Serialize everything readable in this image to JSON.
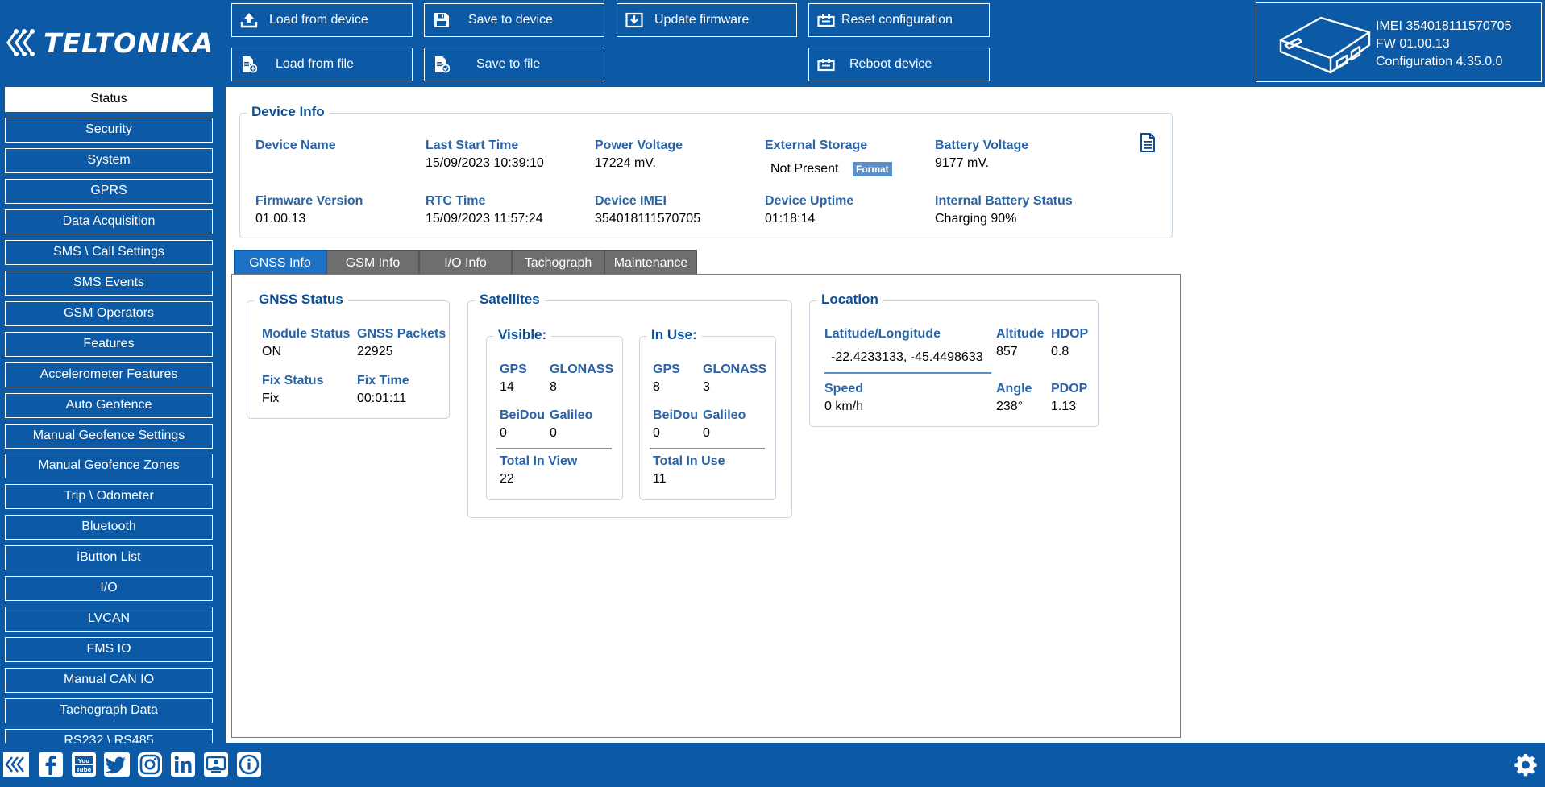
{
  "header": {
    "logo_text": "TELTONIKA",
    "toolbar": {
      "load_from_device": "Load from device",
      "load_from_file": "Load from file",
      "save_to_device": "Save to device",
      "save_to_file": "Save to file",
      "update_firmware": "Update firmware",
      "reset_configuration": "Reset configuration",
      "reboot_device": "Reboot device"
    },
    "device": {
      "imei": "IMEI 354018111570705",
      "fw": "FW 01.00.13",
      "configuration": "Configuration 4.35.0.0"
    }
  },
  "sidebar": {
    "items": [
      "Status",
      "Security",
      "System",
      "GPRS",
      "Data Acquisition",
      "SMS \\ Call Settings",
      "SMS Events",
      "GSM Operators",
      "Features",
      "Accelerometer Features",
      "Auto Geofence",
      "Manual Geofence Settings",
      "Manual Geofence Zones",
      "Trip \\ Odometer",
      "Bluetooth",
      "iButton List",
      "I/O",
      "LVCAN",
      "FMS IO",
      "Manual CAN IO",
      "Tachograph Data",
      "RS232 \\ RS485"
    ],
    "active": "Status"
  },
  "device_info": {
    "title": "Device Info",
    "device_name_label": "Device Name",
    "device_name": "",
    "last_start_time_label": "Last Start Time",
    "last_start_time": "15/09/2023 10:39:10",
    "power_voltage_label": "Power Voltage",
    "power_voltage": "17224 mV.",
    "external_storage_label": "External Storage",
    "external_storage": "Not Present",
    "format_button": "Format",
    "battery_voltage_label": "Battery Voltage",
    "battery_voltage": "9177 mV.",
    "firmware_version_label": "Firmware Version",
    "firmware_version": "01.00.13",
    "rtc_time_label": "RTC Time",
    "rtc_time": "15/09/2023 11:57:24",
    "device_imei_label": "Device IMEI",
    "device_imei": "354018111570705",
    "device_uptime_label": "Device Uptime",
    "device_uptime": "01:18:14",
    "internal_battery_status_label": "Internal Battery Status",
    "internal_battery_status": "Charging 90%"
  },
  "tabs": [
    "GNSS Info",
    "GSM Info",
    "I/O Info",
    "Tachograph",
    "Maintenance"
  ],
  "active_tab": "GNSS Info",
  "gnss_status": {
    "title": "GNSS Status",
    "module_status_label": "Module Status",
    "module_status": "ON",
    "gnss_packets_label": "GNSS Packets",
    "gnss_packets": "22925",
    "fix_status_label": "Fix Status",
    "fix_status": "Fix",
    "fix_time_label": "Fix Time",
    "fix_time": "00:01:11"
  },
  "satellites": {
    "title": "Satellites",
    "visible": {
      "title": "Visible:",
      "gps_label": "GPS",
      "gps": "14",
      "glonass_label": "GLONASS",
      "glonass": "8",
      "beidou_label": "BeiDou",
      "beidou": "0",
      "galileo_label": "Galileo",
      "galileo": "0",
      "total_label": "Total In View",
      "total": "22"
    },
    "in_use": {
      "title": "In Use:",
      "gps_label": "GPS",
      "gps": "8",
      "glonass_label": "GLONASS",
      "glonass": "3",
      "beidou_label": "BeiDou",
      "beidou": "0",
      "galileo_label": "Galileo",
      "galileo": "0",
      "total_label": "Total In Use",
      "total": "11"
    }
  },
  "location": {
    "title": "Location",
    "latlon_label": "Latitude/Longitude",
    "latlon": "-22.4233133, -45.4498633",
    "altitude_label": "Altitude",
    "altitude": "857",
    "hdop_label": "HDOP",
    "hdop": "0.8",
    "speed_label": "Speed",
    "speed": "0 km/h",
    "angle_label": "Angle",
    "angle": "238°",
    "pdop_label": "PDOP",
    "pdop": "1.13"
  },
  "colors": {
    "brand_blue": "#0c5aa6",
    "label_blue": "#2a64a8",
    "tab_active": "#1d72c6",
    "tab_inactive": "#6e6e6e"
  }
}
